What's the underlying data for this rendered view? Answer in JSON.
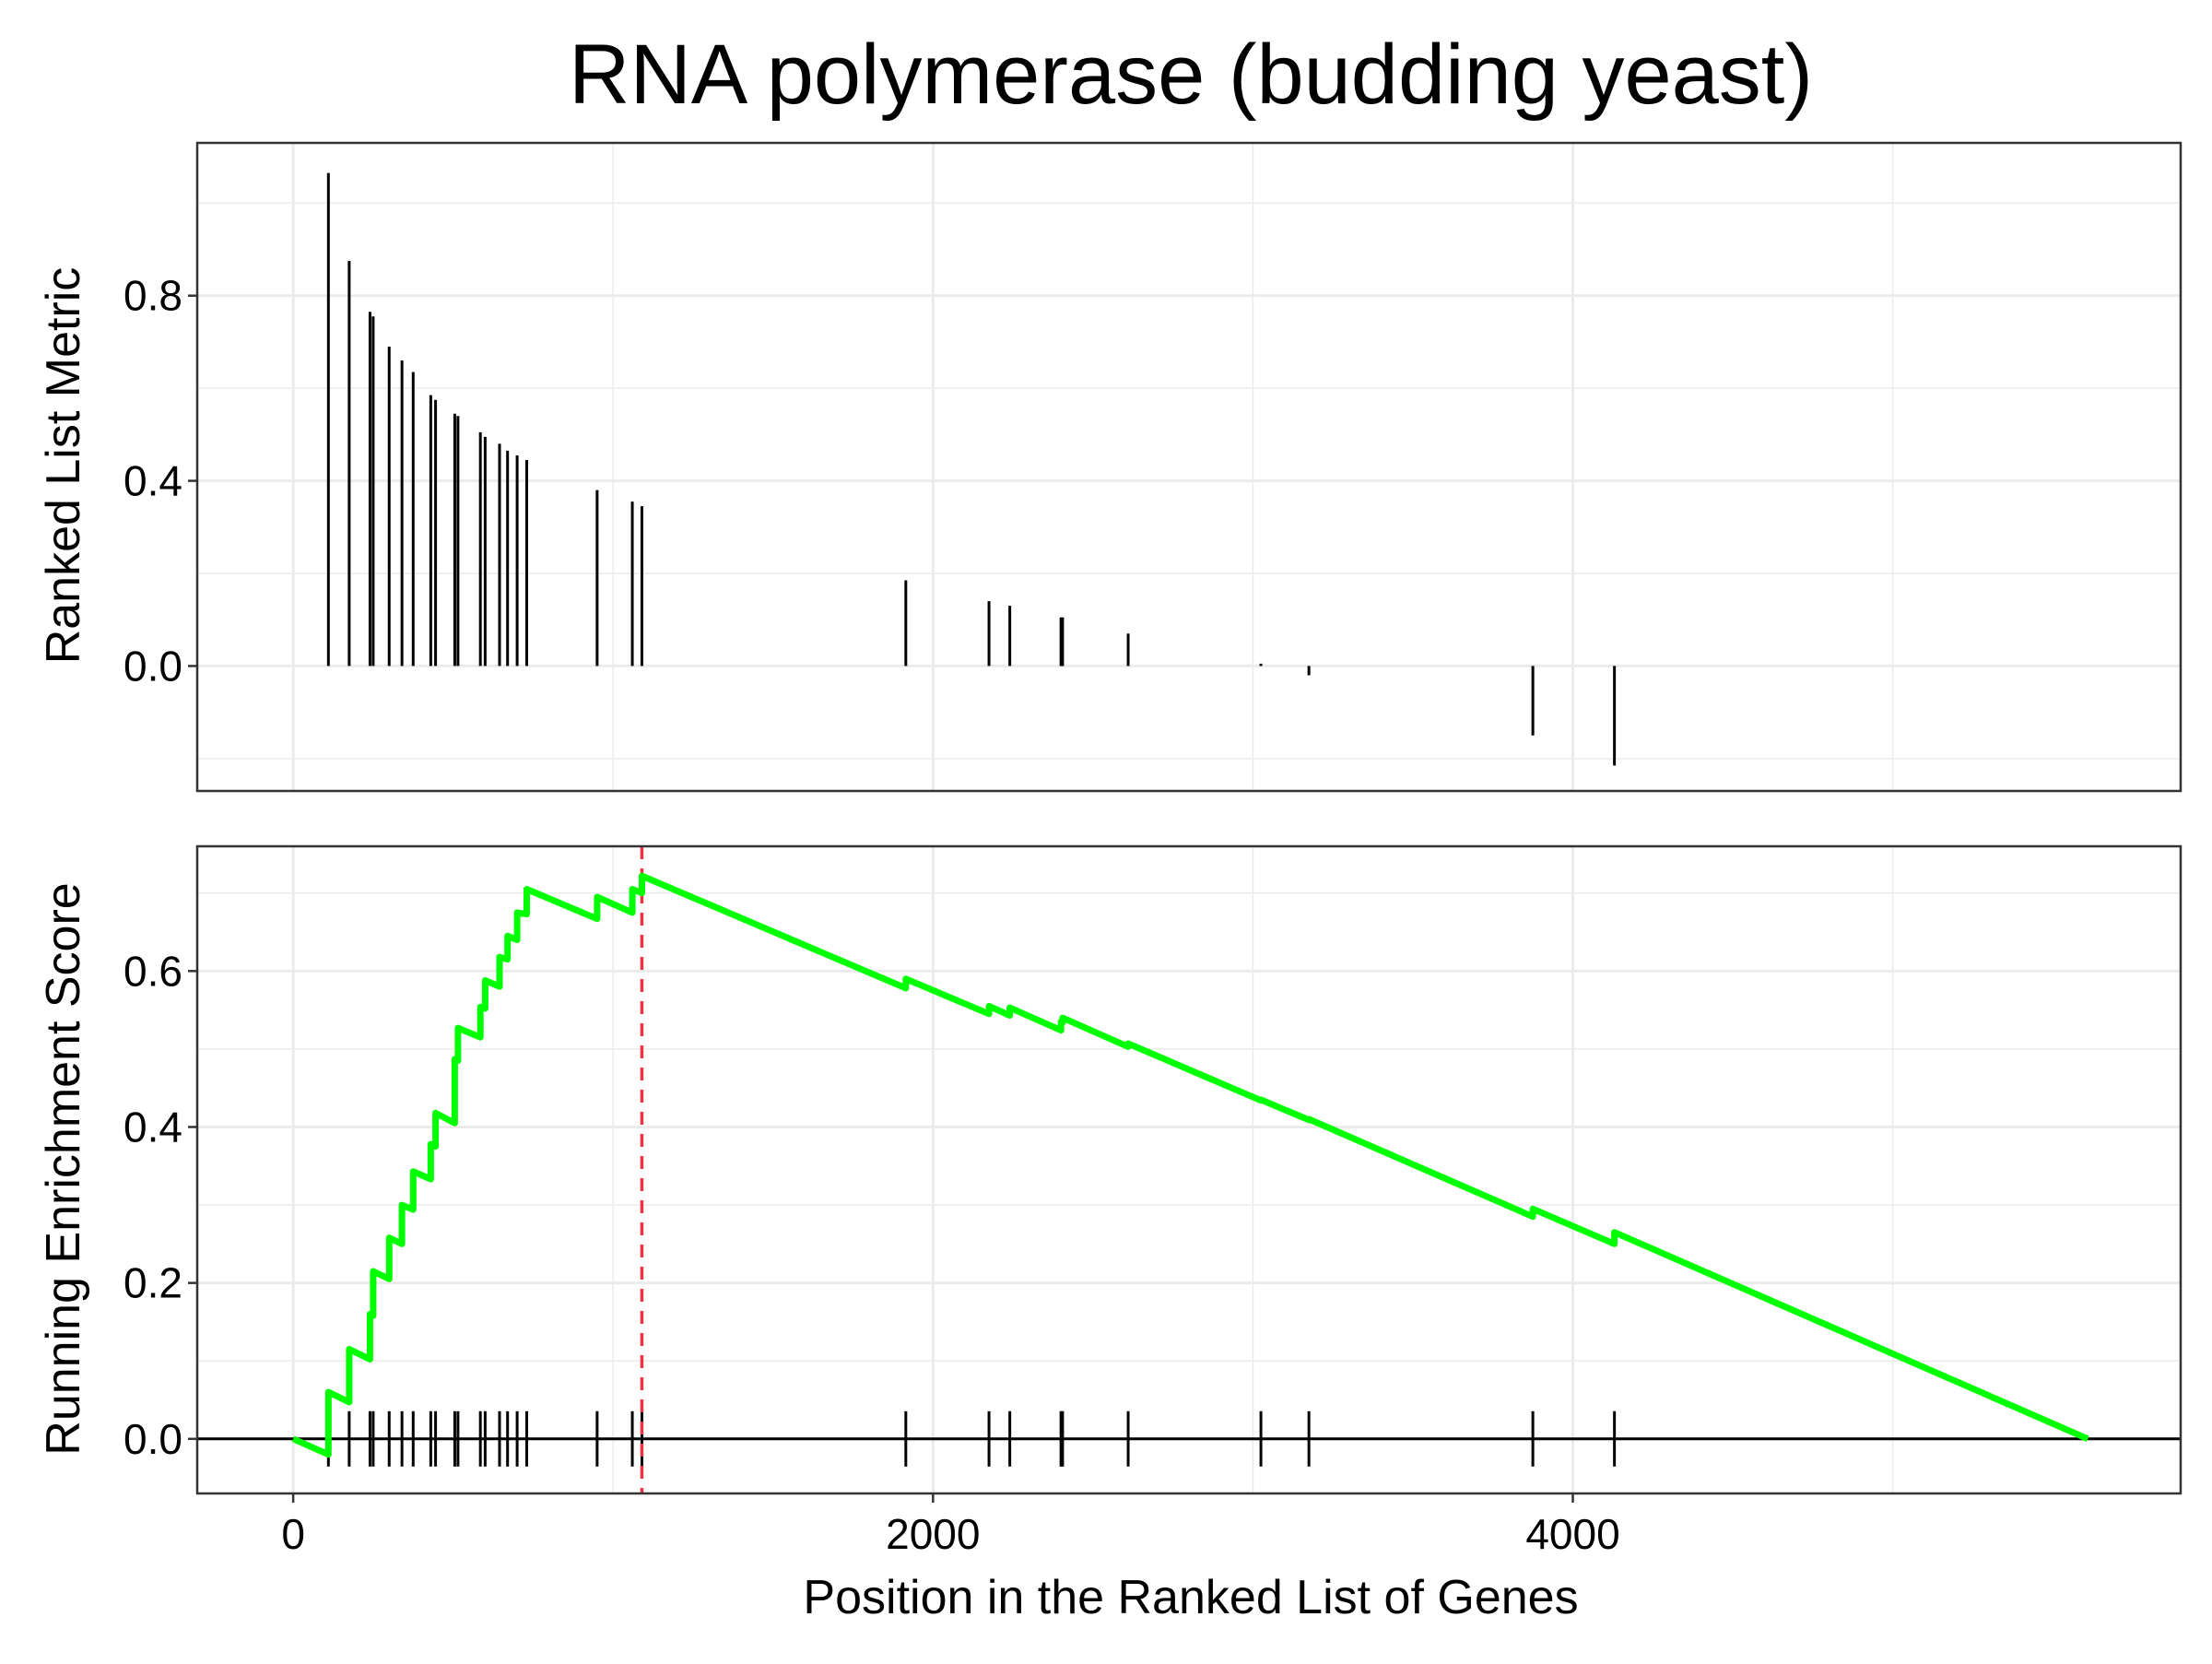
{
  "chart_data": {
    "type": "line",
    "title": "RNA polymerase (budding yeast)",
    "xlabel": "Position in the Ranked List of Genes",
    "x_ticks": [
      0,
      2000,
      4000
    ],
    "xlim": [
      -300,
      5900
    ],
    "colors": {
      "enrichment_line": "#00ff00",
      "peak_line": "#ee3344",
      "bars": "#000000",
      "grid": "#ebebeb"
    },
    "grid": true,
    "panels": [
      {
        "name": "ranked-metric",
        "ylabel": "Ranked List Metric",
        "y_ticks": [
          0.0,
          0.4,
          0.8
        ],
        "y_tick_labels": [
          "0.0",
          "0.4",
          "0.8"
        ],
        "ylim": [
          -0.27,
          1.13
        ],
        "bars": [
          {
            "x": 110,
            "y": 1.065
          },
          {
            "x": 175,
            "y": 0.875
          },
          {
            "x": 240,
            "y": 0.765
          },
          {
            "x": 250,
            "y": 0.755
          },
          {
            "x": 300,
            "y": 0.69
          },
          {
            "x": 340,
            "y": 0.66
          },
          {
            "x": 375,
            "y": 0.635
          },
          {
            "x": 430,
            "y": 0.585
          },
          {
            "x": 445,
            "y": 0.575
          },
          {
            "x": 505,
            "y": 0.545
          },
          {
            "x": 515,
            "y": 0.54
          },
          {
            "x": 585,
            "y": 0.505
          },
          {
            "x": 600,
            "y": 0.495
          },
          {
            "x": 645,
            "y": 0.48
          },
          {
            "x": 670,
            "y": 0.465
          },
          {
            "x": 700,
            "y": 0.455
          },
          {
            "x": 730,
            "y": 0.445
          },
          {
            "x": 950,
            "y": 0.38
          },
          {
            "x": 1060,
            "y": 0.355
          },
          {
            "x": 1090,
            "y": 0.345
          },
          {
            "x": 1915,
            "y": 0.185
          },
          {
            "x": 2175,
            "y": 0.14
          },
          {
            "x": 2240,
            "y": 0.13
          },
          {
            "x": 2400,
            "y": 0.105
          },
          {
            "x": 2405,
            "y": 0.105
          },
          {
            "x": 2610,
            "y": 0.07
          },
          {
            "x": 3025,
            "y": 0.005
          },
          {
            "x": 3175,
            "y": -0.02
          },
          {
            "x": 3875,
            "y": -0.15
          },
          {
            "x": 4130,
            "y": -0.215
          }
        ]
      },
      {
        "name": "running-enrichment",
        "ylabel": "Running Enrichment Score",
        "y_ticks": [
          0.0,
          0.2,
          0.4,
          0.6
        ],
        "y_tick_labels": [
          "0.0",
          "0.2",
          "0.4",
          "0.6"
        ],
        "ylim": [
          -0.07,
          0.76
        ],
        "peak_x": 1090,
        "series": [
          {
            "line": [
              [
                0,
                0.0
              ],
              [
                110,
                -0.02
              ],
              [
                110,
                0.06
              ],
              [
                175,
                0.047
              ],
              [
                175,
                0.115
              ],
              [
                240,
                0.102
              ],
              [
                240,
                0.16
              ],
              [
                250,
                0.158
              ],
              [
                250,
                0.215
              ],
              [
                300,
                0.205
              ],
              [
                300,
                0.258
              ],
              [
                340,
                0.25
              ],
              [
                340,
                0.3
              ],
              [
                375,
                0.294
              ],
              [
                375,
                0.343
              ],
              [
                430,
                0.333
              ],
              [
                430,
                0.378
              ],
              [
                445,
                0.375
              ],
              [
                445,
                0.418
              ],
              [
                505,
                0.405
              ],
              [
                505,
                0.487
              ],
              [
                515,
                0.485
              ],
              [
                515,
                0.527
              ],
              [
                585,
                0.515
              ],
              [
                585,
                0.554
              ],
              [
                600,
                0.552
              ],
              [
                600,
                0.588
              ],
              [
                645,
                0.58
              ],
              [
                645,
                0.618
              ],
              [
                670,
                0.615
              ],
              [
                670,
                0.645
              ],
              [
                700,
                0.64
              ],
              [
                700,
                0.675
              ],
              [
                730,
                0.673
              ],
              [
                730,
                0.705
              ],
              [
                950,
                0.667
              ],
              [
                950,
                0.695
              ],
              [
                1060,
                0.675
              ],
              [
                1060,
                0.705
              ],
              [
                1090,
                0.7
              ],
              [
                1090,
                0.722
              ],
              [
                1915,
                0.578
              ],
              [
                1915,
                0.59
              ],
              [
                2175,
                0.545
              ],
              [
                2175,
                0.555
              ],
              [
                2240,
                0.543
              ],
              [
                2240,
                0.553
              ],
              [
                2400,
                0.524
              ],
              [
                2400,
                0.535
              ],
              [
                2405,
                0.534
              ],
              [
                2405,
                0.54
              ],
              [
                2610,
                0.503
              ],
              [
                2610,
                0.507
              ],
              [
                3025,
                0.434
              ],
              [
                3025,
                0.435
              ],
              [
                3175,
                0.409
              ],
              [
                3175,
                0.41
              ],
              [
                3875,
                0.285
              ],
              [
                3875,
                0.295
              ],
              [
                4130,
                0.25
              ],
              [
                4130,
                0.265
              ],
              [
                5610,
                0.0
              ]
            ]
          }
        ],
        "gene_ticks": [
          110,
          175,
          240,
          250,
          300,
          340,
          375,
          430,
          445,
          505,
          515,
          585,
          600,
          645,
          670,
          700,
          730,
          950,
          1060,
          1090,
          1915,
          2175,
          2240,
          2400,
          2405,
          2610,
          3025,
          3175,
          3875,
          4130
        ]
      }
    ]
  }
}
